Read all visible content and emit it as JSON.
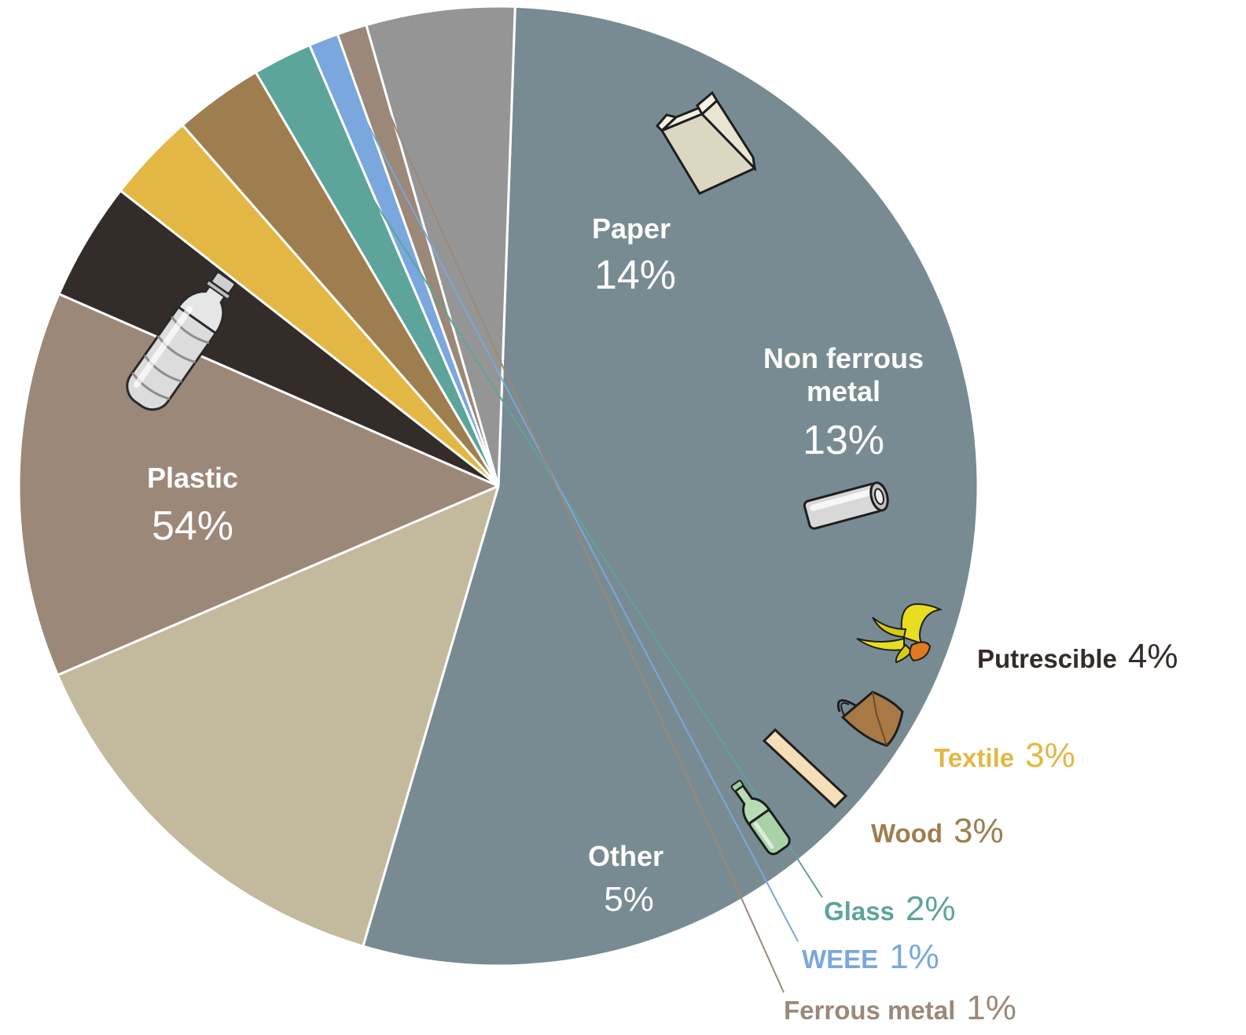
{
  "chart_data": {
    "type": "pie",
    "title": "",
    "categories": [
      "Plastic",
      "Paper",
      "Non ferrous metal",
      "Putrescible",
      "Textile",
      "Wood",
      "Glass",
      "WEEE",
      "Ferrous metal",
      "Other"
    ],
    "values": [
      54,
      14,
      13,
      4,
      3,
      3,
      2,
      1,
      1,
      5
    ],
    "slices": [
      {
        "key": "plastic",
        "label": "Plastic",
        "pct_text": "54%",
        "value": 54,
        "color": "#788b92",
        "label_color": "#ffffff",
        "pct_color": "#ffffff",
        "icon": "plastic-bottle-icon",
        "label_placement": "inside"
      },
      {
        "key": "paper",
        "label": "Paper",
        "pct_text": "14%",
        "value": 14,
        "color": "#c3b99c",
        "label_color": "#ffffff",
        "pct_color": "#ffffff",
        "icon": "cardboard-box-icon",
        "label_placement": "inside"
      },
      {
        "key": "non-ferrous-metal",
        "label": "Non ferrous metal",
        "label_lines": [
          "Non ferrous",
          "metal"
        ],
        "pct_text": "13%",
        "value": 13,
        "color": "#9b8878",
        "label_color": "#ffffff",
        "pct_color": "#ffffff",
        "icon": "aluminium-can-icon",
        "label_placement": "inside"
      },
      {
        "key": "putrescible",
        "label": "Putrescible",
        "pct_text": "4%",
        "value": 4,
        "color": "#342c28",
        "label_color": "#342c28",
        "pct_color": "#342c28",
        "icon": "banana-peel-icon",
        "label_placement": "outside"
      },
      {
        "key": "textile",
        "label": "Textile",
        "pct_text": "3%",
        "value": 3,
        "color": "#e3b744",
        "label_color": "#e3b744",
        "pct_color": "#e3b744",
        "icon": "textile-bag-icon",
        "label_placement": "outside"
      },
      {
        "key": "wood",
        "label": "Wood",
        "pct_text": "3%",
        "value": 3,
        "color": "#9e7e4e",
        "label_color": "#9e7e4e",
        "pct_color": "#9e7e4e",
        "icon": "wood-plank-icon",
        "label_placement": "outside"
      },
      {
        "key": "glass",
        "label": "Glass",
        "pct_text": "2%",
        "value": 2,
        "color": "#5da49b",
        "label_color": "#5da49b",
        "pct_color": "#5da49b",
        "icon": "glass-bottle-icon",
        "label_placement": "outside"
      },
      {
        "key": "weee",
        "label": "WEEE",
        "pct_text": "1%",
        "value": 1,
        "color": "#7aa7dd",
        "label_color": "#7aa7dd",
        "pct_color": "#7aa7dd",
        "icon": "",
        "label_placement": "outside"
      },
      {
        "key": "ferrous-metal",
        "label": "Ferrous metal",
        "pct_text": "1%",
        "value": 1,
        "color": "#9b8878",
        "label_color": "#9b8878",
        "pct_color": "#9b8878",
        "icon": "",
        "label_placement": "outside"
      },
      {
        "key": "other",
        "label": "Other",
        "pct_text": "5%",
        "value": 5,
        "color": "#959595",
        "label_color": "#ffffff",
        "pct_color": "#ffffff",
        "icon": "",
        "label_placement": "inside"
      }
    ],
    "legend": "none",
    "grid": false
  }
}
